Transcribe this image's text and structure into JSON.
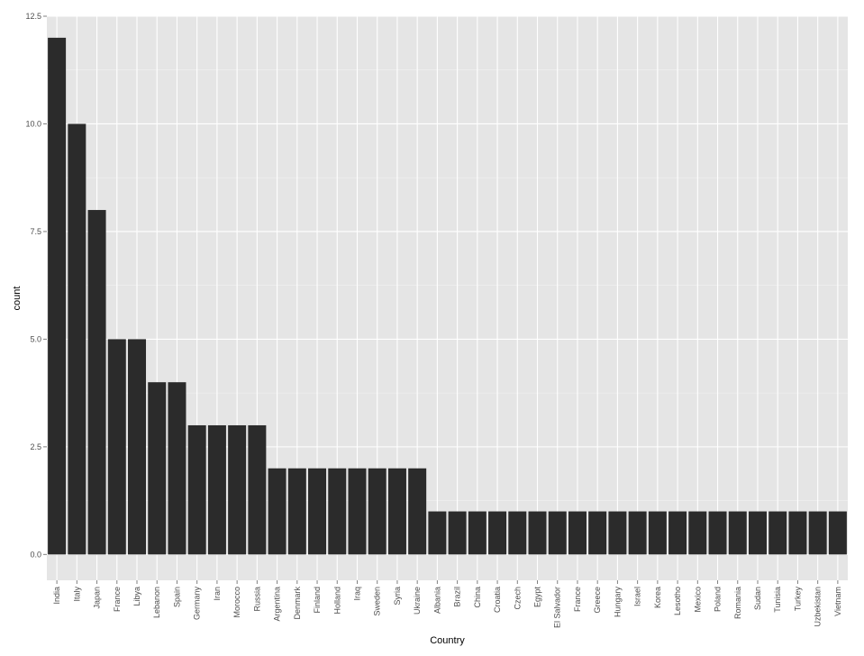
{
  "chart_data": {
    "type": "bar",
    "title": "",
    "xlabel": "Country",
    "ylabel": "count",
    "ylim": [
      -0.6,
      12.5
    ],
    "yticks": [
      0,
      2.5,
      5,
      7.5,
      10,
      12.5
    ],
    "ytick_labels": [
      "0.0",
      "2.5",
      "5.0",
      "7.5",
      "10.0",
      "12.5"
    ],
    "grid": true,
    "legend": "none",
    "bar_color": "#2b2b2b",
    "panel_color": "#e5e5e5",
    "categories": [
      "India",
      "Italy",
      "Japan",
      "France",
      "Libya",
      "Lebanon",
      "Spain",
      "Germany",
      "Iran",
      "Morocco",
      "Russia",
      "Argentina",
      "Denmark",
      "Finland",
      "Holland",
      "Iraq",
      "Sweden",
      "Syria",
      "Ukraine",
      "Albania",
      "Brazil",
      "China",
      "Croatia",
      "Czech",
      "Egypt",
      "El Salvador",
      "France ",
      "Greece",
      "Hungary",
      "Israel",
      "Korea",
      "Lesotho",
      "Mexico",
      "Poland",
      "Romania",
      "Sudan",
      "Tunisia",
      "Turkey",
      "Uzbekistan",
      "Vietnam"
    ],
    "values": [
      12,
      10,
      8,
      5,
      5,
      4,
      4,
      3,
      3,
      3,
      3,
      2,
      2,
      2,
      2,
      2,
      2,
      2,
      2,
      1,
      1,
      1,
      1,
      1,
      1,
      1,
      1,
      1,
      1,
      1,
      1,
      1,
      1,
      1,
      1,
      1,
      1,
      1,
      1,
      1
    ]
  }
}
